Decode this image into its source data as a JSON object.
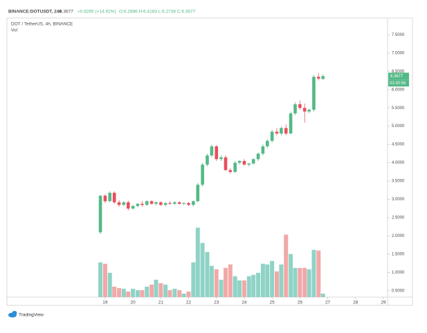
{
  "chart_data": {
    "type": "candlestick",
    "legend": {
      "symbol": "BINANCE:DOTUSDT, 240",
      "last": "6.3677",
      "change": "+0.8265 (+14.92%)",
      "ohlc": "O:6.2886 H:6.4183 L:6.2738 C:6.3677"
    },
    "subtitle": "DOT / TetherUS, 4h, BINANCE",
    "volume_label": "Vol",
    "countdown": "03:30:56",
    "brand": "TradingView",
    "x": [
      18.83,
      19.0,
      19.17,
      19.33,
      19.5,
      19.67,
      19.83,
      20.0,
      20.17,
      20.33,
      20.5,
      20.67,
      20.83,
      21.0,
      21.17,
      21.33,
      21.5,
      21.67,
      21.83,
      22.0,
      22.17,
      22.33,
      22.5,
      22.67,
      22.83,
      23.0,
      23.17,
      23.33,
      23.5,
      23.67,
      23.83,
      24.0,
      24.17,
      24.33,
      24.5,
      24.67,
      24.83,
      25.0,
      25.17,
      25.33,
      25.5,
      25.67,
      25.83,
      26.0,
      26.17,
      26.33,
      26.5,
      26.67,
      26.83
    ],
    "open": [
      2.1,
      3.1,
      2.95,
      3.18,
      2.92,
      2.85,
      2.92,
      2.75,
      2.82,
      2.88,
      2.85,
      2.95,
      2.88,
      2.92,
      2.85,
      2.9,
      2.88,
      2.92,
      2.88,
      2.9,
      2.85,
      2.95,
      3.4,
      3.95,
      4.2,
      4.45,
      4.1,
      4.15,
      3.8,
      3.75,
      4.0,
      4.05,
      3.95,
      3.98,
      4.1,
      4.25,
      4.45,
      4.6,
      4.85,
      4.8,
      4.95,
      4.8,
      5.35,
      5.6,
      5.5,
      5.4,
      5.45,
      6.35,
      6.2886
    ],
    "high": [
      3.12,
      3.14,
      3.22,
      3.22,
      2.98,
      2.95,
      2.96,
      2.85,
      2.9,
      2.95,
      2.98,
      2.98,
      2.95,
      2.95,
      2.92,
      2.95,
      2.95,
      2.95,
      2.92,
      2.93,
      2.97,
      3.45,
      4.0,
      4.25,
      4.5,
      4.48,
      4.2,
      4.2,
      3.85,
      4.05,
      4.08,
      4.1,
      4.0,
      4.12,
      4.28,
      4.5,
      4.65,
      4.9,
      4.95,
      5.0,
      5.05,
      5.4,
      5.65,
      5.7,
      5.62,
      5.48,
      6.4,
      6.45,
      6.4183
    ],
    "low": [
      2.05,
      2.9,
      2.93,
      2.88,
      2.8,
      2.82,
      2.7,
      2.72,
      2.78,
      2.8,
      2.82,
      2.85,
      2.83,
      2.82,
      2.8,
      2.85,
      2.85,
      2.86,
      2.84,
      2.82,
      2.8,
      2.92,
      3.35,
      3.9,
      4.15,
      4.05,
      4.05,
      3.78,
      3.7,
      3.72,
      3.95,
      3.92,
      3.9,
      3.95,
      4.05,
      4.2,
      4.4,
      4.55,
      4.75,
      4.75,
      4.75,
      4.78,
      5.3,
      5.45,
      5.1,
      5.35,
      5.4,
      6.25,
      6.2738
    ],
    "close": [
      3.1,
      2.95,
      3.18,
      2.92,
      2.85,
      2.92,
      2.75,
      2.82,
      2.88,
      2.85,
      2.95,
      2.88,
      2.92,
      2.85,
      2.9,
      2.88,
      2.92,
      2.88,
      2.9,
      2.85,
      2.95,
      3.4,
      3.95,
      4.2,
      4.45,
      4.1,
      4.15,
      3.8,
      3.75,
      4.0,
      4.05,
      3.95,
      3.98,
      4.1,
      4.25,
      4.45,
      4.6,
      4.85,
      4.8,
      4.95,
      4.8,
      5.35,
      5.6,
      5.5,
      5.4,
      5.45,
      6.35,
      6.3,
      6.3677
    ],
    "volume": [
      50,
      48,
      35,
      15,
      13,
      12,
      8,
      12,
      10,
      10,
      15,
      18,
      25,
      20,
      18,
      10,
      12,
      10,
      5,
      8,
      50,
      100,
      78,
      65,
      45,
      40,
      25,
      42,
      47,
      30,
      24,
      24,
      30,
      32,
      35,
      48,
      47,
      52,
      37,
      47,
      90,
      62,
      42,
      42,
      42,
      40,
      68,
      67,
      5
    ],
    "up_color": "#53b987",
    "down_color": "#eb4d5c",
    "volume_up_color": "#8fd3c6",
    "volume_down_color": "#f2a8a8",
    "xlim": [
      15.52,
      29.15
    ],
    "xticks": [
      19,
      20,
      21,
      22,
      23,
      24,
      25,
      26,
      27,
      28,
      29
    ],
    "ylim": [
      0.33,
      7.92
    ],
    "yticks": [
      {
        "value": 0.5,
        "label": "0.5000"
      },
      {
        "value": 1,
        "label": "1.0000"
      },
      {
        "value": 1.5,
        "label": "1.5000"
      },
      {
        "value": 2,
        "label": "2.0000"
      },
      {
        "value": 2.5,
        "label": "2.5000"
      },
      {
        "value": 3,
        "label": "3.0000"
      },
      {
        "value": 3.5,
        "label": "3.5000"
      },
      {
        "value": 4,
        "label": "4.0000"
      },
      {
        "value": 4.5,
        "label": "4.5000"
      },
      {
        "value": 5,
        "label": "5.0000"
      },
      {
        "value": 5.5,
        "label": "5.5000"
      },
      {
        "value": 6,
        "label": "6.0000"
      },
      {
        "value": 6.5,
        "label": "6.5000"
      },
      {
        "value": 7,
        "label": "7.0000"
      },
      {
        "value": 7.5,
        "label": "7.5000"
      }
    ],
    "volume_lim": [
      0,
      400
    ],
    "grid": false
  }
}
